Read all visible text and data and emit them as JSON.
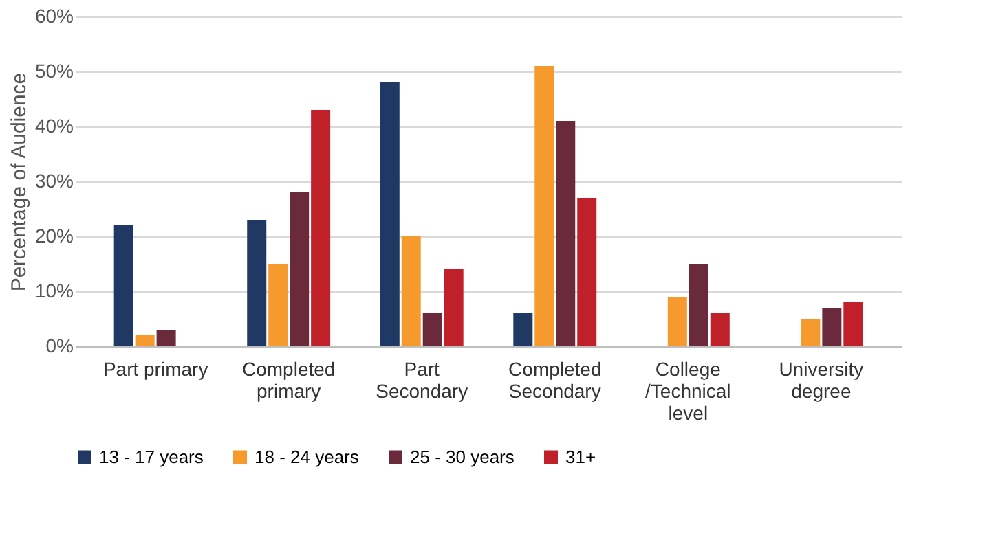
{
  "chart_data": {
    "type": "bar",
    "ylabel": "Percentage of Audience",
    "categories": [
      "Part primary",
      "Completed primary",
      "Part Secondary",
      "Completed Secondary",
      "College /Technical level",
      "University degree"
    ],
    "series": [
      {
        "name": "13 - 17 years",
        "color": "#203864",
        "values": [
          22,
          23,
          48,
          6,
          null,
          null
        ]
      },
      {
        "name": "18 - 24 years",
        "color": "#f79a2e",
        "values": [
          2,
          15,
          20,
          51,
          9,
          5
        ]
      },
      {
        "name": "25 - 30 years",
        "color": "#6b2a3c",
        "values": [
          3,
          28,
          6,
          41,
          15,
          7
        ]
      },
      {
        "name": "31+",
        "color": "#c0202a",
        "values": [
          null,
          43,
          14,
          27,
          6,
          8
        ]
      }
    ],
    "ylim": [
      0,
      60
    ],
    "yticks": [
      {
        "value": 0,
        "label": "0%"
      },
      {
        "value": 10,
        "label": "10%"
      },
      {
        "value": 20,
        "label": "20%"
      },
      {
        "value": 30,
        "label": "30%"
      },
      {
        "value": 40,
        "label": "40%"
      },
      {
        "value": 50,
        "label": "50%"
      },
      {
        "value": 60,
        "label": "60%"
      }
    ],
    "grid": "y",
    "legend": "bottom"
  }
}
